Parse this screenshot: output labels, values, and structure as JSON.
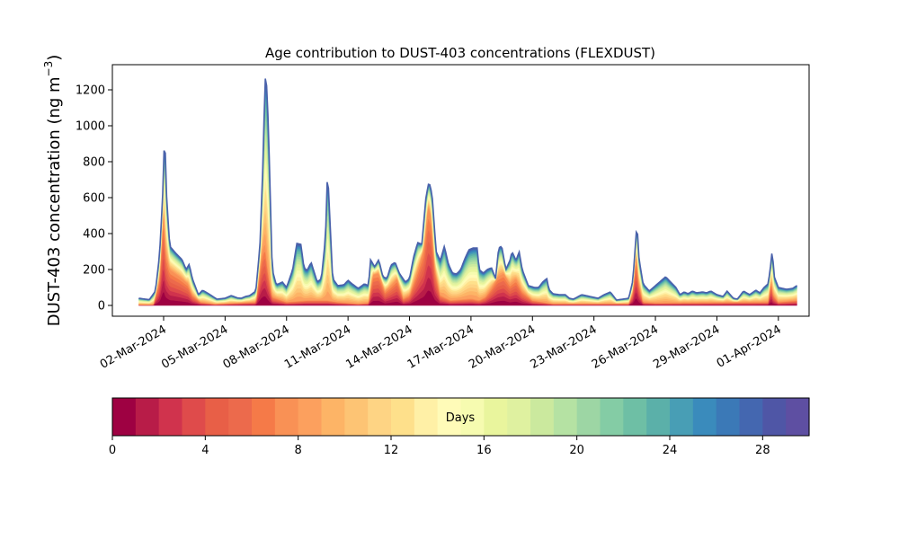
{
  "chart_data": {
    "type": "area",
    "stacked": true,
    "title": "Age contribution to DUST-403 concentrations (FLEXDUST)",
    "ylabel_main": "DUST-403 concentration (ng m",
    "ylabel_sup": "−3",
    "ylabel_close": ")",
    "xlabel": "",
    "ylim": [
      -60,
      1340
    ],
    "y_ticks": [
      0,
      200,
      400,
      600,
      800,
      1000,
      1200
    ],
    "x_range_days": [
      -1.5,
      32.5
    ],
    "x_ticks": [
      {
        "day": 1,
        "label": "02-Mar-2024"
      },
      {
        "day": 4,
        "label": "05-Mar-2024"
      },
      {
        "day": 7,
        "label": "08-Mar-2024"
      },
      {
        "day": 10,
        "label": "11-Mar-2024"
      },
      {
        "day": 13,
        "label": "14-Mar-2024"
      },
      {
        "day": 16,
        "label": "17-Mar-2024"
      },
      {
        "day": 19,
        "label": "20-Mar-2024"
      },
      {
        "day": 22,
        "label": "23-Mar-2024"
      },
      {
        "day": 25,
        "label": "26-Mar-2024"
      },
      {
        "day": 28,
        "label": "29-Mar-2024"
      },
      {
        "day": 31,
        "label": "01-Apr-2024"
      }
    ],
    "x_day_zero": "01-Mar-2024",
    "total_profile": [
      [
        -0.2,
        40
      ],
      [
        0.3,
        32
      ],
      [
        0.6,
        80
      ],
      [
        0.8,
        280
      ],
      [
        0.95,
        600
      ],
      [
        1.05,
        975
      ],
      [
        1.15,
        600
      ],
      [
        1.3,
        330
      ],
      [
        1.6,
        290
      ],
      [
        1.9,
        255
      ],
      [
        2.1,
        200
      ],
      [
        2.25,
        230
      ],
      [
        2.4,
        150
      ],
      [
        2.7,
        60
      ],
      [
        2.9,
        85
      ],
      [
        3.2,
        65
      ],
      [
        3.6,
        35
      ],
      [
        4.0,
        40
      ],
      [
        4.3,
        55
      ],
      [
        4.6,
        42
      ],
      [
        4.8,
        40
      ],
      [
        5.0,
        50
      ],
      [
        5.2,
        55
      ],
      [
        5.5,
        80
      ],
      [
        5.7,
        330
      ],
      [
        5.85,
        800
      ],
      [
        5.95,
        1270
      ],
      [
        6.05,
        1210
      ],
      [
        6.15,
        850
      ],
      [
        6.3,
        200
      ],
      [
        6.5,
        115
      ],
      [
        6.8,
        130
      ],
      [
        7.0,
        100
      ],
      [
        7.3,
        200
      ],
      [
        7.5,
        345
      ],
      [
        7.7,
        340
      ],
      [
        7.85,
        210
      ],
      [
        8.0,
        195
      ],
      [
        8.2,
        240
      ],
      [
        8.5,
        130
      ],
      [
        8.7,
        150
      ],
      [
        8.9,
        380
      ],
      [
        9.0,
        760
      ],
      [
        9.1,
        520
      ],
      [
        9.25,
        150
      ],
      [
        9.5,
        110
      ],
      [
        9.8,
        115
      ],
      [
        10.0,
        140
      ],
      [
        10.2,
        120
      ],
      [
        10.5,
        95
      ],
      [
        10.8,
        120
      ],
      [
        11.0,
        110
      ],
      [
        11.1,
        255
      ],
      [
        11.3,
        215
      ],
      [
        11.5,
        255
      ],
      [
        11.7,
        160
      ],
      [
        11.9,
        150
      ],
      [
        12.1,
        225
      ],
      [
        12.3,
        240
      ],
      [
        12.5,
        180
      ],
      [
        12.8,
        130
      ],
      [
        13.0,
        150
      ],
      [
        13.2,
        270
      ],
      [
        13.4,
        350
      ],
      [
        13.6,
        340
      ],
      [
        13.8,
        600
      ],
      [
        13.95,
        690
      ],
      [
        14.1,
        620
      ],
      [
        14.3,
        300
      ],
      [
        14.5,
        250
      ],
      [
        14.7,
        330
      ],
      [
        14.9,
        230
      ],
      [
        15.1,
        180
      ],
      [
        15.3,
        175
      ],
      [
        15.5,
        200
      ],
      [
        15.7,
        260
      ],
      [
        15.9,
        310
      ],
      [
        16.1,
        320
      ],
      [
        16.3,
        320
      ],
      [
        16.4,
        200
      ],
      [
        16.6,
        180
      ],
      [
        16.8,
        200
      ],
      [
        17.0,
        210
      ],
      [
        17.2,
        150
      ],
      [
        17.35,
        320
      ],
      [
        17.5,
        330
      ],
      [
        17.7,
        200
      ],
      [
        17.9,
        250
      ],
      [
        18.0,
        300
      ],
      [
        18.2,
        250
      ],
      [
        18.35,
        300
      ],
      [
        18.5,
        200
      ],
      [
        18.8,
        110
      ],
      [
        19.1,
        100
      ],
      [
        19.3,
        100
      ],
      [
        19.5,
        130
      ],
      [
        19.7,
        150
      ],
      [
        19.8,
        90
      ],
      [
        20.0,
        65
      ],
      [
        20.3,
        60
      ],
      [
        20.6,
        60
      ],
      [
        20.8,
        40
      ],
      [
        21.0,
        35
      ],
      [
        21.4,
        60
      ],
      [
        21.8,
        50
      ],
      [
        22.2,
        40
      ],
      [
        22.5,
        60
      ],
      [
        22.8,
        75
      ],
      [
        23.1,
        30
      ],
      [
        23.4,
        35
      ],
      [
        23.7,
        40
      ],
      [
        23.9,
        140
      ],
      [
        24.0,
        300
      ],
      [
        24.1,
        460
      ],
      [
        24.2,
        260
      ],
      [
        24.4,
        120
      ],
      [
        24.7,
        80
      ],
      [
        25.0,
        110
      ],
      [
        25.2,
        130
      ],
      [
        25.5,
        160
      ],
      [
        25.7,
        135
      ],
      [
        26.0,
        100
      ],
      [
        26.2,
        60
      ],
      [
        26.4,
        75
      ],
      [
        26.6,
        65
      ],
      [
        26.8,
        80
      ],
      [
        27.0,
        70
      ],
      [
        27.3,
        75
      ],
      [
        27.5,
        70
      ],
      [
        27.7,
        80
      ],
      [
        28.0,
        60
      ],
      [
        28.3,
        50
      ],
      [
        28.5,
        80
      ],
      [
        28.8,
        40
      ],
      [
        29.0,
        35
      ],
      [
        29.3,
        80
      ],
      [
        29.6,
        60
      ],
      [
        29.9,
        85
      ],
      [
        30.1,
        70
      ],
      [
        30.3,
        100
      ],
      [
        30.5,
        120
      ],
      [
        30.6,
        200
      ],
      [
        30.7,
        310
      ],
      [
        30.8,
        160
      ],
      [
        31.0,
        100
      ],
      [
        31.4,
        90
      ],
      [
        31.7,
        95
      ],
      [
        31.9,
        110
      ]
    ],
    "young_profile": [
      [
        -0.2,
        5
      ],
      [
        0.5,
        5
      ],
      [
        0.8,
        150
      ],
      [
        1.0,
        550
      ],
      [
        1.1,
        300
      ],
      [
        1.3,
        200
      ],
      [
        1.8,
        160
      ],
      [
        2.2,
        120
      ],
      [
        2.4,
        60
      ],
      [
        2.8,
        20
      ],
      [
        3.5,
        8
      ],
      [
        5.5,
        20
      ],
      [
        5.8,
        300
      ],
      [
        5.95,
        350
      ],
      [
        6.1,
        200
      ],
      [
        6.3,
        50
      ],
      [
        7.0,
        20
      ],
      [
        8.0,
        30
      ],
      [
        9.0,
        30
      ],
      [
        9.5,
        20
      ],
      [
        10.5,
        10
      ],
      [
        11.0,
        15
      ],
      [
        11.2,
        170
      ],
      [
        11.5,
        180
      ],
      [
        11.8,
        80
      ],
      [
        12.0,
        100
      ],
      [
        12.4,
        150
      ],
      [
        12.7,
        40
      ],
      [
        13.0,
        60
      ],
      [
        13.4,
        200
      ],
      [
        13.7,
        320
      ],
      [
        13.9,
        560
      ],
      [
        14.05,
        500
      ],
      [
        14.25,
        200
      ],
      [
        14.5,
        60
      ],
      [
        15.0,
        30
      ],
      [
        16.0,
        40
      ],
      [
        16.4,
        30
      ],
      [
        16.7,
        50
      ],
      [
        17.0,
        100
      ],
      [
        17.3,
        160
      ],
      [
        17.6,
        180
      ],
      [
        17.9,
        120
      ],
      [
        18.2,
        150
      ],
      [
        18.5,
        80
      ],
      [
        19.0,
        30
      ],
      [
        20.0,
        10
      ],
      [
        23.7,
        10
      ],
      [
        23.9,
        80
      ],
      [
        24.05,
        290
      ],
      [
        24.2,
        120
      ],
      [
        24.4,
        20
      ],
      [
        25.0,
        15
      ],
      [
        30.5,
        20
      ],
      [
        30.65,
        150
      ],
      [
        30.75,
        60
      ],
      [
        31.0,
        20
      ],
      [
        31.9,
        30
      ]
    ],
    "series_days": [
      1,
      2,
      3,
      4,
      5,
      6,
      7,
      8,
      9,
      10,
      11,
      12,
      13,
      14,
      15,
      16,
      17,
      18,
      19,
      20,
      21,
      22,
      23,
      24,
      25,
      26,
      27,
      28,
      29,
      30
    ],
    "colorbar": {
      "label": "Days",
      "min": 0,
      "max": 30,
      "ticks": [
        0,
        4,
        8,
        12,
        16,
        20,
        24,
        28
      ],
      "colormap": "Spectral",
      "colors": [
        "#9e0142",
        "#b81c48",
        "#d0334d",
        "#df4b4b",
        "#e85f47",
        "#ec6a4c",
        "#f57a48",
        "#f99155",
        "#fca05e",
        "#fdb466",
        "#fdc474",
        "#fed484",
        "#fee08b",
        "#fff0a6",
        "#fffbb8",
        "#f6fbb0",
        "#e9f59d",
        "#dff1a0",
        "#cbe99e",
        "#b5e2a3",
        "#9dd6a4",
        "#84cca5",
        "#6ebfa5",
        "#5bb0a9",
        "#489eb5",
        "#3a8bbc",
        "#3b79b7",
        "#4467b0",
        "#4f56a6",
        "#5e4fa2"
      ]
    }
  }
}
